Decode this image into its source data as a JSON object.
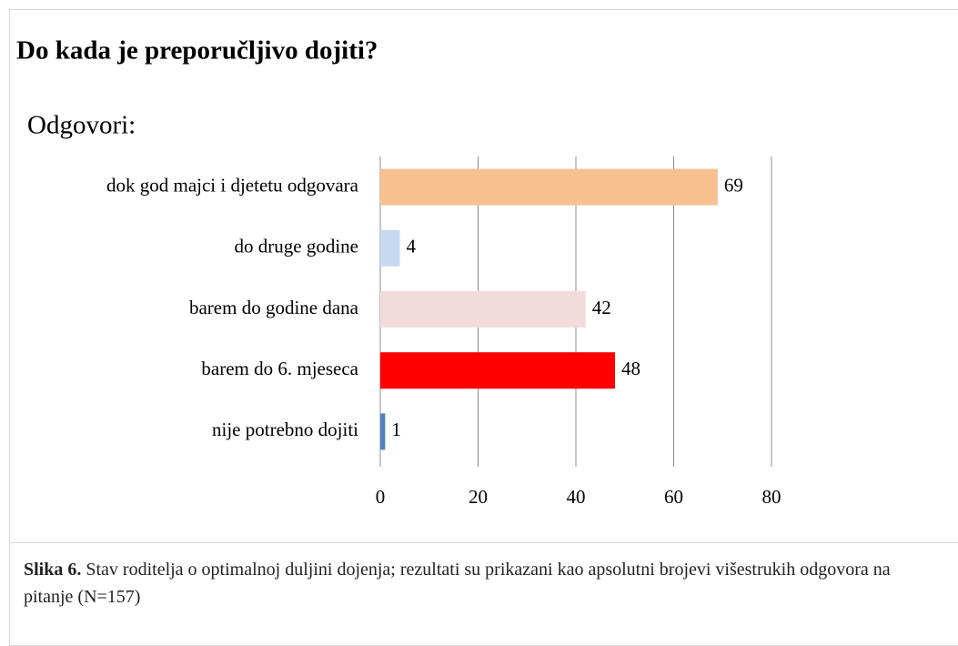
{
  "chart_data": {
    "type": "barh",
    "title": "Do kada je preporučljivo dojiti?",
    "subtitle": "Odgovori:",
    "categories": [
      "dok god majci i djetetu odgovara",
      "do druge godine",
      "barem do godine dana",
      "barem do 6. mjeseca",
      "nije potrebno dojiti"
    ],
    "values": [
      69,
      4,
      42,
      48,
      1
    ],
    "colors": [
      "#f9c08f",
      "#c6d9f1",
      "#f2dcdb",
      "#ff0000",
      "#4f81bd"
    ],
    "xlim": [
      0,
      80
    ],
    "xticks": [
      0,
      20,
      40,
      60,
      80
    ],
    "grid": true
  },
  "caption": {
    "label": "Slika 6.",
    "text": "Stav roditelja o optimalnoj duljini dojenja; rezultati su prikazani kao apsolutni brojevi višestrukih odgovora na pitanje (N=157)"
  }
}
